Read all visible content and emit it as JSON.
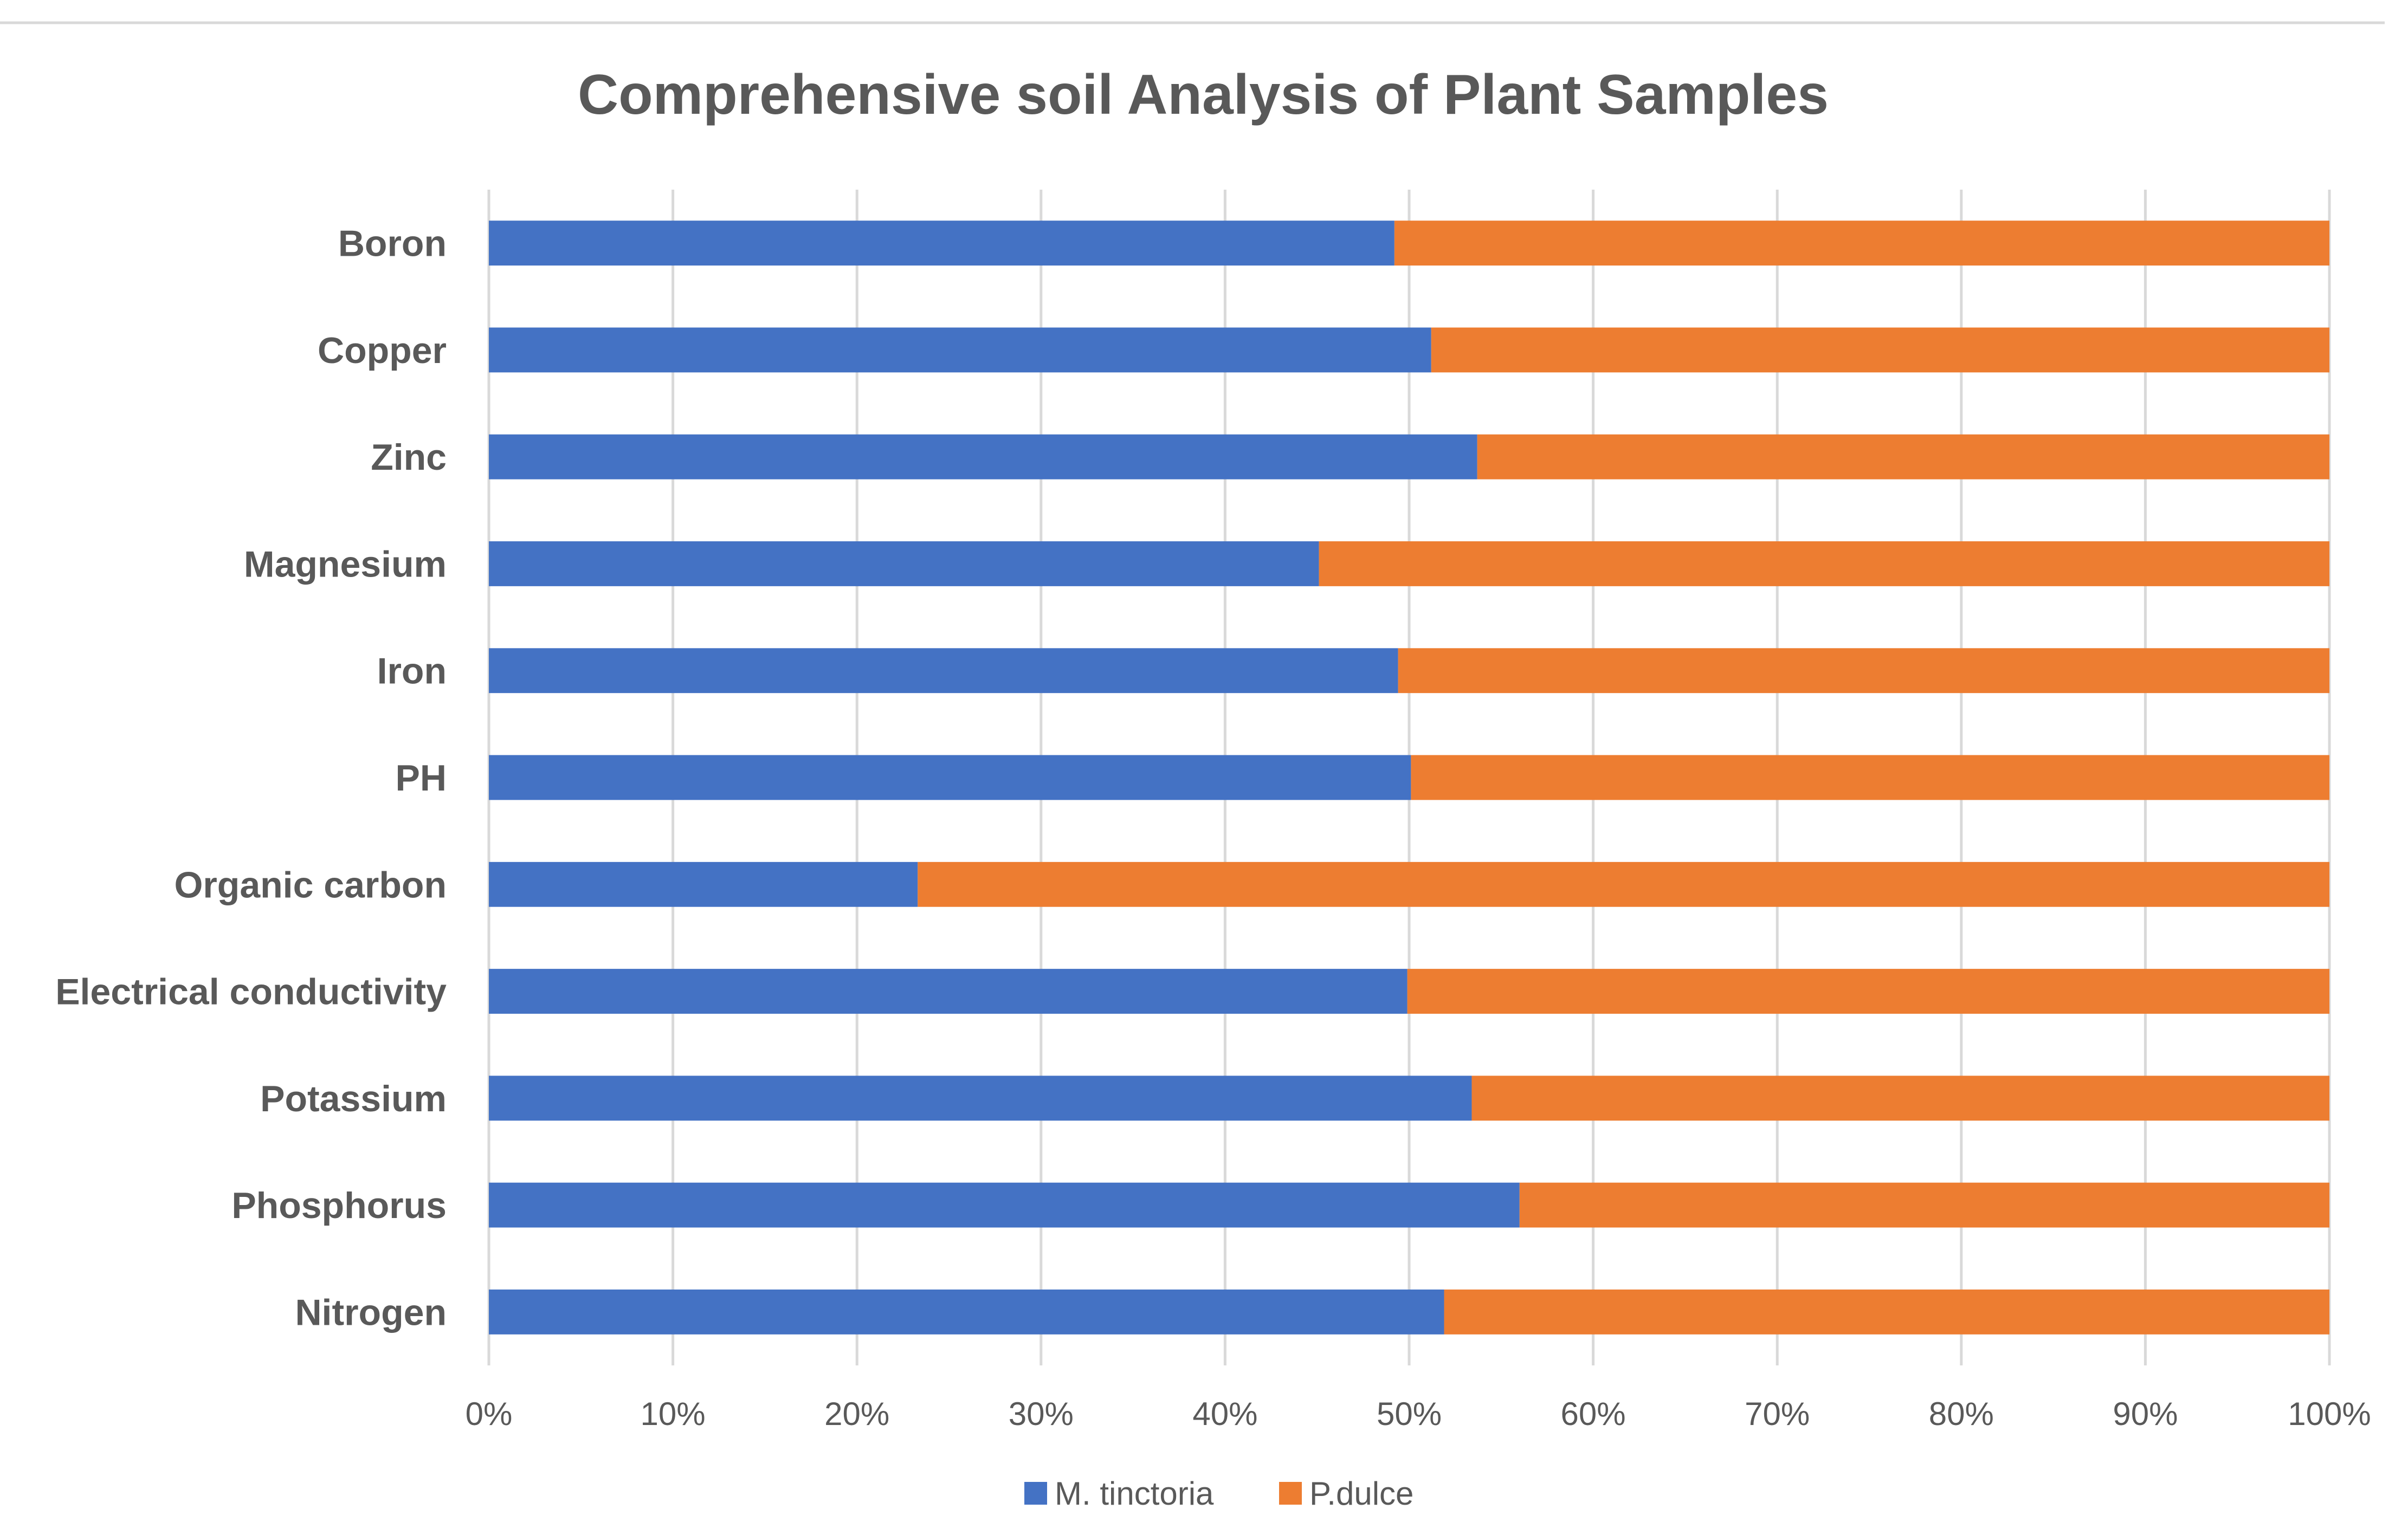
{
  "chart_data": {
    "type": "bar",
    "orientation": "horizontal",
    "stacking": "percent",
    "title": "Comprehensive soil Analysis of Plant Samples",
    "xlabel": "",
    "ylabel": "",
    "xlim": [
      0,
      100
    ],
    "categories": [
      "Nitrogen",
      "Phosphorus",
      "Potassium",
      "Electrical conductivity",
      "Organic carbon",
      "PH",
      "Iron",
      "Magnesium",
      "Zinc",
      "Copper",
      "Boron"
    ],
    "series": [
      {
        "name": "M. tinctoria",
        "color": "#4472C4",
        "values": [
          51.9,
          56.0,
          53.4,
          49.9,
          23.3,
          50.1,
          49.4,
          45.1,
          53.7,
          51.2,
          49.2
        ]
      },
      {
        "name": "P.dulce",
        "color": "#ED7D31",
        "values": [
          48.1,
          44.0,
          46.6,
          50.1,
          76.7,
          49.9,
          50.6,
          54.9,
          46.3,
          48.8,
          50.8
        ]
      }
    ],
    "tick_labels": [
      "0%",
      "10%",
      "20%",
      "30%",
      "40%",
      "50%",
      "60%",
      "70%",
      "80%",
      "90%",
      "100%"
    ],
    "grid": true,
    "legend_position": "bottom"
  }
}
